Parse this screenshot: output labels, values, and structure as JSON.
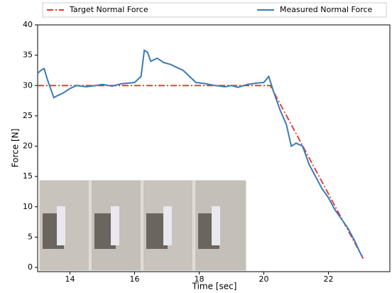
{
  "chart_data": {
    "type": "line",
    "xlabel": "Time [sec]",
    "ylabel": "Force [N]",
    "xlim": [
      13.0,
      23.9
    ],
    "ylim": [
      -0.7,
      40
    ],
    "xticks": [
      14,
      16,
      18,
      20,
      22
    ],
    "yticks": [
      0,
      5,
      10,
      15,
      20,
      25,
      30,
      35,
      40
    ],
    "legend": "top",
    "series": [
      {
        "name": "Target Normal Force",
        "color": "#e8322b",
        "dash": "dashdot",
        "x": [
          13.0,
          20.2,
          23.1
        ],
        "values": [
          30,
          30,
          1.2
        ]
      },
      {
        "name": "Measured Normal Force",
        "color": "#3b7bb5",
        "dash": "solid",
        "x": [
          13.0,
          13.1,
          13.2,
          13.3,
          13.4,
          13.5,
          13.6,
          13.8,
          14.0,
          14.2,
          14.5,
          14.8,
          15.0,
          15.3,
          15.6,
          16.0,
          16.2,
          16.3,
          16.4,
          16.5,
          16.7,
          16.9,
          17.1,
          17.3,
          17.5,
          17.7,
          17.9,
          18.2,
          18.5,
          18.8,
          19.0,
          19.2,
          19.5,
          19.8,
          20.0,
          20.15,
          20.3,
          20.5,
          20.7,
          20.85,
          21.0,
          21.2,
          21.4,
          21.6,
          21.8,
          22.0,
          22.2,
          22.4,
          22.6,
          22.8,
          23.0,
          23.05
        ],
        "values": [
          32,
          32.5,
          32.8,
          31,
          29.5,
          28,
          28.3,
          28.8,
          29.5,
          30,
          29.8,
          30,
          30.2,
          29.9,
          30.3,
          30.5,
          31.5,
          35.8,
          35.5,
          34,
          34.5,
          33.8,
          33.5,
          33,
          32.5,
          31.5,
          30.5,
          30.3,
          30,
          29.8,
          30,
          29.7,
          30.2,
          30.4,
          30.5,
          31.5,
          29,
          26,
          23.5,
          20,
          20.5,
          20,
          17,
          15,
          13,
          11.5,
          9.5,
          8,
          6.5,
          4.5,
          2.2,
          1.8
        ]
      }
    ]
  }
}
